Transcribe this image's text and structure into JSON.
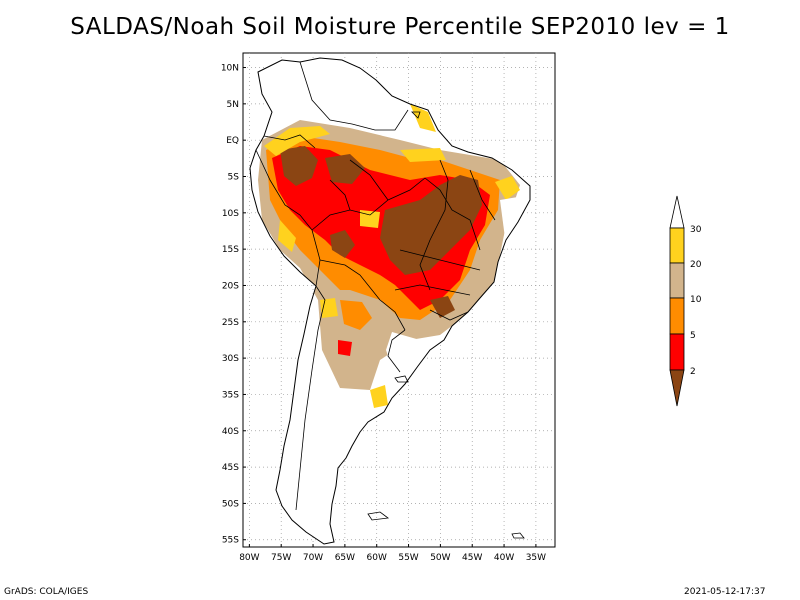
{
  "title": "SALDAS/Noah Soil Moisture Percentile SEP2010 lev = 1",
  "lat_labels": [
    "10N",
    "5N",
    "EQ",
    "5S",
    "10S",
    "15S",
    "20S",
    "25S",
    "30S",
    "35S",
    "40S",
    "45S",
    "50S",
    "55S"
  ],
  "lon_labels": [
    "80W",
    "75W",
    "70W",
    "65W",
    "60W",
    "55W",
    "50W",
    "45W",
    "40W",
    "35W"
  ],
  "legend": {
    "ticks": [
      "30",
      "20",
      "10",
      "5",
      "2"
    ],
    "colors": {
      "p30_plus": "#ffffff",
      "p20_30": "#ffd21e",
      "p10_20": "#d2b48c",
      "p5_10": "#ff8c00",
      "p2_5": "#ff0000",
      "p0_2": "#8b4513"
    }
  },
  "footer": {
    "left": "GrADS: COLA/IGES",
    "right": "2021-05-12-17:37"
  }
}
